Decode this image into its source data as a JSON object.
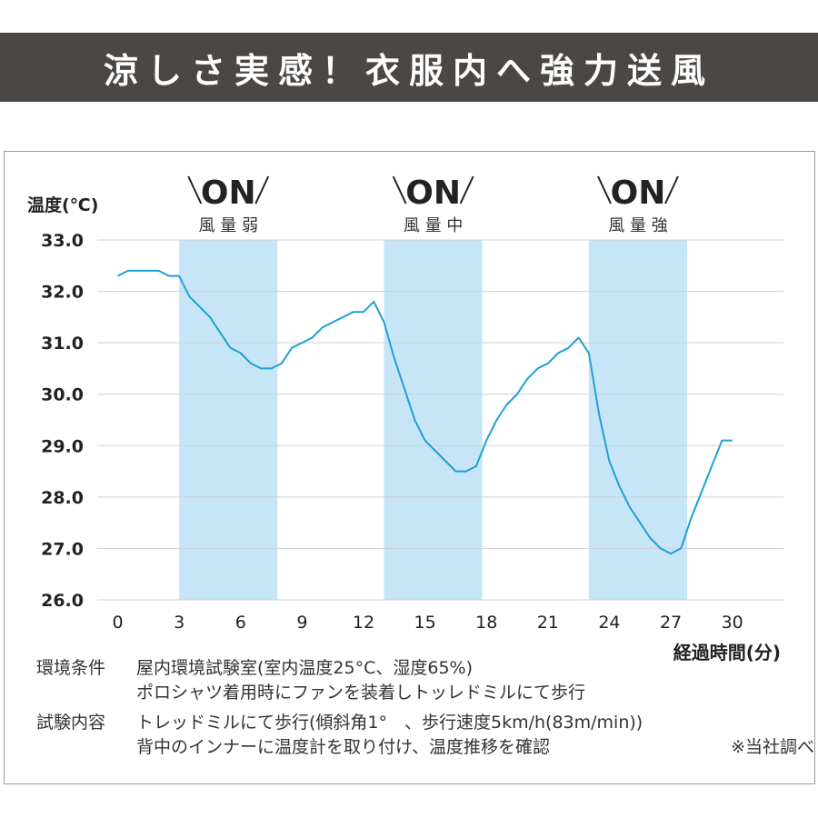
{
  "banner": {
    "title": "涼しさ実感！衣服内へ強力送風"
  },
  "colors": {
    "banner_bg": "#4a4744",
    "line": "#1ea0d8",
    "band": "#c6e6f7",
    "grid": "#d0d0d0",
    "text": "#333333"
  },
  "chart_data": {
    "type": "line",
    "ylabel": "温度(℃)",
    "xlabel": "経過時間(分)",
    "ylim": [
      26.0,
      33.0
    ],
    "xlim": [
      -1,
      32.5
    ],
    "yticks": [
      "33.0",
      "32.0",
      "31.0",
      "30.0",
      "29.0",
      "28.0",
      "27.0",
      "26.0"
    ],
    "xticks": [
      "0",
      "3",
      "6",
      "9",
      "12",
      "15",
      "18",
      "21",
      "24",
      "27",
      "30"
    ],
    "grid": true,
    "legend": "none",
    "bands": [
      {
        "x0": 3,
        "x1": 7.8,
        "on": "ON",
        "label": "風 量 弱"
      },
      {
        "x0": 13,
        "x1": 17.8,
        "on": "ON",
        "label": "風 量 中"
      },
      {
        "x0": 23,
        "x1": 27.8,
        "on": "ON",
        "label": "風 量 強"
      }
    ],
    "series": [
      {
        "x": [
          0,
          0.5,
          1,
          1.5,
          2,
          2.5,
          3,
          3.5,
          4,
          4.5,
          5,
          5.5,
          6,
          6.5,
          7,
          7.5,
          8,
          8.5,
          9,
          9.5,
          10,
          10.5,
          11,
          11.5,
          12,
          12.5,
          13,
          13.5,
          14,
          14.5,
          15,
          15.5,
          16,
          16.5,
          17,
          17.5,
          18,
          18.5,
          19,
          19.5,
          20,
          20.5,
          21,
          21.5,
          22,
          22.5,
          23,
          23.5,
          24,
          24.5,
          25,
          25.5,
          26,
          26.5,
          27,
          27.5,
          28,
          28.5,
          29,
          29.5,
          30
        ],
        "values": [
          32.3,
          32.4,
          32.4,
          32.4,
          32.4,
          32.3,
          32.3,
          31.9,
          31.7,
          31.5,
          31.2,
          30.9,
          30.8,
          30.6,
          30.5,
          30.5,
          30.6,
          30.9,
          31.0,
          31.1,
          31.3,
          31.4,
          31.5,
          31.6,
          31.6,
          31.8,
          31.4,
          30.7,
          30.1,
          29.5,
          29.1,
          28.9,
          28.7,
          28.5,
          28.5,
          28.6,
          29.1,
          29.5,
          29.8,
          30.0,
          30.3,
          30.5,
          30.6,
          30.8,
          30.9,
          31.1,
          30.8,
          29.6,
          28.7,
          28.2,
          27.8,
          27.5,
          27.2,
          27.0,
          26.9,
          27.0,
          27.6,
          28.1,
          28.6,
          29.1,
          29.1
        ]
      }
    ]
  },
  "notes": {
    "env_label": "環境条件",
    "env_line1": "屋内環境試験室(室内温度25°C、湿度65%)",
    "env_line2": "ポロシャツ着用時にファンを装着しトッレドミルにて歩行",
    "test_label": "試験内容",
    "test_line1": "トレッドミルにて歩行(傾斜角1°　、歩行速度5km/h(83m/min))",
    "test_line2": "背中のインナーに温度計を取り付け、温度推移を確認",
    "source": "※当社調べ"
  }
}
